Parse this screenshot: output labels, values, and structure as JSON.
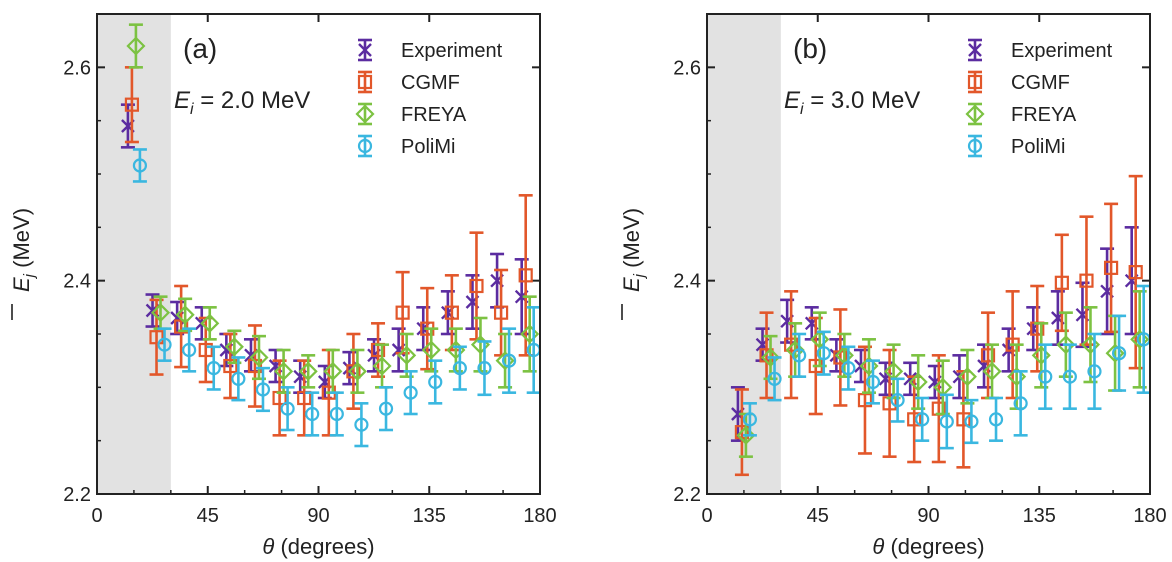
{
  "chart_data": [
    {
      "type": "scatter",
      "panel_label": "(a)",
      "annotation_prefix": "E",
      "annotation_subscript": "i",
      "annotation_value": " = 2.0 MeV",
      "xlabel_symbol": "θ",
      "xlabel_rest": " (degrees)",
      "ylabel_symbol": "E",
      "ylabel_subscript": "j",
      "ylabel_rest": " (MeV)",
      "xlim": [
        0,
        180
      ],
      "ylim": [
        2.2,
        2.65
      ],
      "xticks": [
        0,
        45,
        90,
        135,
        180
      ],
      "yticks": [
        2.2,
        2.4,
        2.6
      ],
      "shaded_region": [
        0,
        30
      ],
      "legend": "top-right",
      "series": [
        {
          "name": "Experiment",
          "marker": "x",
          "color": "#5b2ca0",
          "x": [
            15,
            25,
            35,
            45,
            55,
            65,
            75,
            85,
            95,
            105,
            115,
            125,
            135,
            145,
            155,
            165,
            175
          ],
          "y": [
            2.545,
            2.372,
            2.365,
            2.36,
            2.335,
            2.33,
            2.32,
            2.31,
            2.305,
            2.318,
            2.33,
            2.335,
            2.355,
            2.37,
            2.38,
            2.4,
            2.385
          ],
          "err": [
            0.02,
            0.015,
            0.015,
            0.015,
            0.015,
            0.015,
            0.015,
            0.015,
            0.015,
            0.015,
            0.015,
            0.02,
            0.02,
            0.02,
            0.025,
            0.025,
            0.035
          ]
        },
        {
          "name": "CGMF",
          "marker": "square",
          "color": "#e2572a",
          "x": [
            15,
            25,
            35,
            45,
            55,
            65,
            75,
            85,
            95,
            105,
            115,
            125,
            135,
            145,
            155,
            165,
            175
          ],
          "y": [
            2.565,
            2.347,
            2.357,
            2.335,
            2.32,
            2.32,
            2.29,
            2.29,
            2.295,
            2.315,
            2.335,
            2.37,
            2.355,
            2.37,
            2.395,
            2.37,
            2.405
          ],
          "err": [
            0.035,
            0.035,
            0.038,
            0.03,
            0.03,
            0.038,
            0.035,
            0.035,
            0.04,
            0.035,
            0.025,
            0.038,
            0.038,
            0.035,
            0.05,
            0.04,
            0.075
          ]
        },
        {
          "name": "FREYA",
          "marker": "diamond",
          "color": "#7cc242",
          "x": [
            15,
            25,
            35,
            45,
            55,
            65,
            75,
            85,
            95,
            105,
            115,
            125,
            135,
            145,
            155,
            165,
            175
          ],
          "y": [
            2.62,
            2.37,
            2.368,
            2.36,
            2.338,
            2.328,
            2.315,
            2.315,
            2.315,
            2.315,
            2.32,
            2.33,
            2.335,
            2.335,
            2.34,
            2.325,
            2.35
          ],
          "err": [
            0.02,
            0.015,
            0.015,
            0.015,
            0.015,
            0.02,
            0.02,
            0.015,
            0.02,
            0.02,
            0.02,
            0.02,
            0.02,
            0.02,
            0.025,
            0.025,
            0.035
          ]
        },
        {
          "name": "PoliMi",
          "marker": "circle",
          "color": "#3ab7e0",
          "x": [
            15,
            25,
            35,
            45,
            55,
            65,
            75,
            85,
            95,
            105,
            115,
            125,
            135,
            145,
            155,
            165,
            175
          ],
          "y": [
            2.508,
            2.34,
            2.335,
            2.318,
            2.308,
            2.298,
            2.28,
            2.275,
            2.275,
            2.265,
            2.28,
            2.295,
            2.305,
            2.318,
            2.318,
            2.325,
            2.335
          ],
          "err": [
            0.015,
            0.015,
            0.02,
            0.02,
            0.02,
            0.02,
            0.02,
            0.02,
            0.02,
            0.02,
            0.02,
            0.02,
            0.02,
            0.02,
            0.025,
            0.03,
            0.04
          ]
        }
      ]
    },
    {
      "type": "scatter",
      "panel_label": "(b)",
      "annotation_prefix": "E",
      "annotation_subscript": "i",
      "annotation_value": " = 3.0 MeV",
      "xlabel_symbol": "θ",
      "xlabel_rest": " (degrees)",
      "ylabel_symbol": "E",
      "ylabel_subscript": "j",
      "ylabel_rest": " (MeV)",
      "xlim": [
        0,
        180
      ],
      "ylim": [
        2.2,
        2.65
      ],
      "xticks": [
        0,
        45,
        90,
        135,
        180
      ],
      "yticks": [
        2.2,
        2.4,
        2.6
      ],
      "shaded_region": [
        0,
        30
      ],
      "legend": "top-right",
      "series": [
        {
          "name": "Experiment",
          "marker": "x",
          "color": "#5b2ca0",
          "x": [
            15,
            25,
            35,
            45,
            55,
            65,
            75,
            85,
            95,
            105,
            115,
            125,
            135,
            145,
            155,
            165,
            175
          ],
          "y": [
            2.275,
            2.34,
            2.362,
            2.36,
            2.33,
            2.32,
            2.308,
            2.308,
            2.305,
            2.31,
            2.32,
            2.335,
            2.355,
            2.365,
            2.368,
            2.39,
            2.4
          ],
          "err": [
            0.025,
            0.015,
            0.02,
            0.015,
            0.015,
            0.015,
            0.015,
            0.015,
            0.015,
            0.02,
            0.02,
            0.02,
            0.02,
            0.025,
            0.03,
            0.04,
            0.05
          ]
        },
        {
          "name": "CGMF",
          "marker": "square",
          "color": "#e2572a",
          "x": [
            15,
            25,
            35,
            45,
            55,
            65,
            75,
            85,
            95,
            105,
            115,
            125,
            135,
            145,
            155,
            165,
            175
          ],
          "y": [
            2.258,
            2.33,
            2.34,
            2.32,
            2.328,
            2.288,
            2.285,
            2.27,
            2.28,
            2.27,
            2.33,
            2.34,
            2.355,
            2.398,
            2.4,
            2.412,
            2.408
          ],
          "err": [
            0.04,
            0.04,
            0.05,
            0.045,
            0.045,
            0.05,
            0.05,
            0.04,
            0.05,
            0.045,
            0.04,
            0.05,
            0.04,
            0.045,
            0.06,
            0.06,
            0.09
          ]
        },
        {
          "name": "FREYA",
          "marker": "diamond",
          "color": "#7cc242",
          "x": [
            15,
            25,
            35,
            45,
            55,
            65,
            75,
            85,
            95,
            105,
            115,
            125,
            135,
            145,
            155,
            165,
            175
          ],
          "y": [
            2.255,
            2.328,
            2.335,
            2.345,
            2.33,
            2.32,
            2.315,
            2.305,
            2.3,
            2.31,
            2.315,
            2.31,
            2.33,
            2.34,
            2.34,
            2.332,
            2.345
          ],
          "err": [
            0.02,
            0.02,
            0.025,
            0.025,
            0.02,
            0.025,
            0.025,
            0.025,
            0.025,
            0.025,
            0.025,
            0.03,
            0.03,
            0.03,
            0.035,
            0.035,
            0.045
          ]
        },
        {
          "name": "PoliMi",
          "marker": "circle",
          "color": "#3ab7e0",
          "x": [
            15,
            25,
            35,
            45,
            55,
            65,
            75,
            85,
            95,
            105,
            115,
            125,
            135,
            145,
            155,
            165,
            175
          ],
          "y": [
            2.27,
            2.308,
            2.33,
            2.332,
            2.318,
            2.305,
            2.288,
            2.27,
            2.268,
            2.268,
            2.27,
            2.285,
            2.31,
            2.31,
            2.315,
            2.332,
            2.345
          ],
          "err": [
            0.015,
            0.02,
            0.02,
            0.02,
            0.02,
            0.02,
            0.02,
            0.02,
            0.025,
            0.02,
            0.02,
            0.03,
            0.03,
            0.03,
            0.035,
            0.035,
            0.05
          ]
        }
      ]
    }
  ]
}
